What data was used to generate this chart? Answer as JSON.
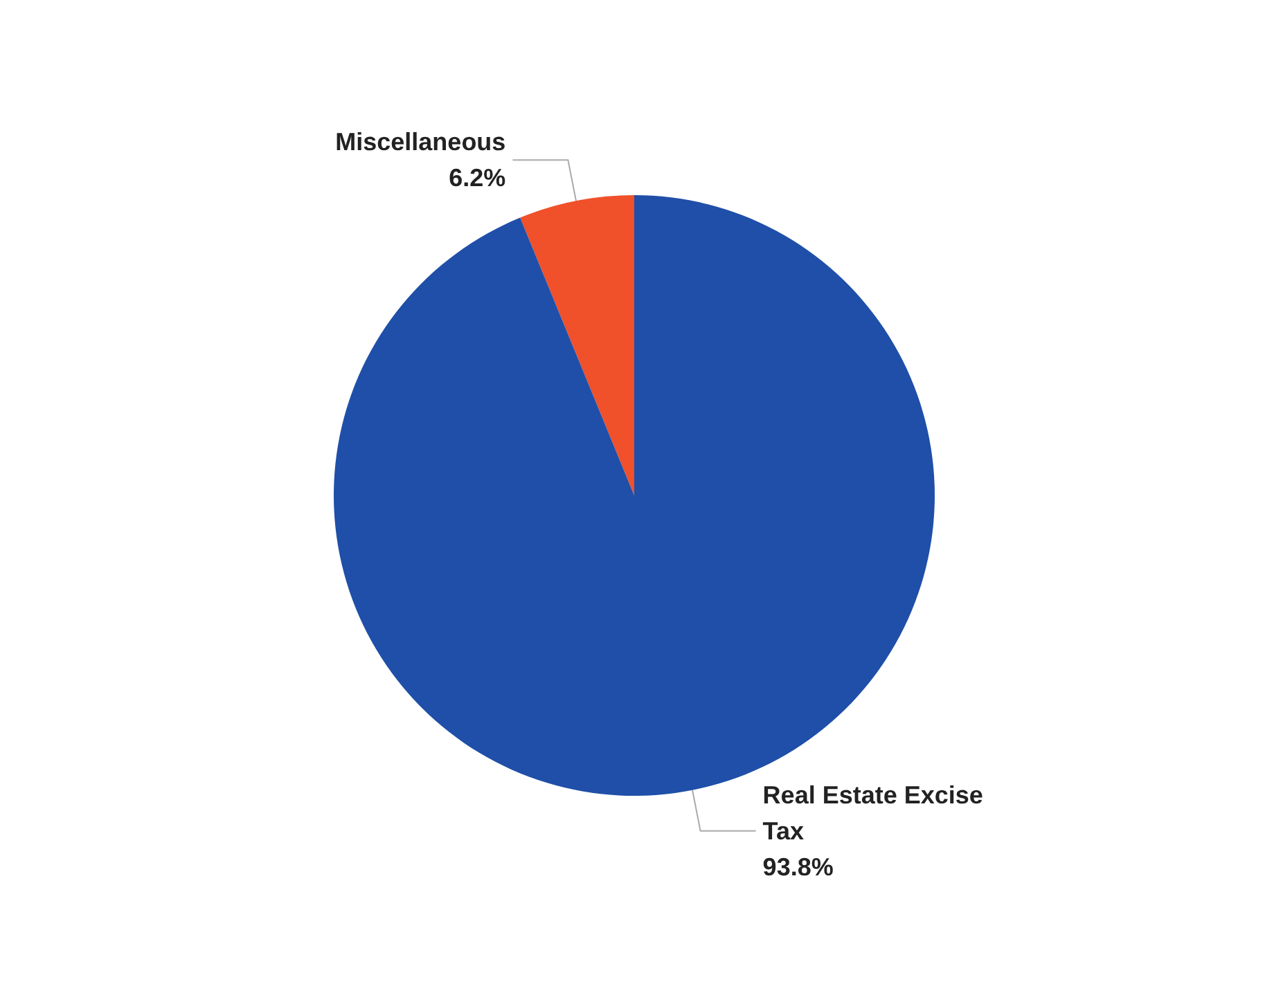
{
  "chart_data": {
    "type": "pie",
    "categories": [
      "Miscellaneous",
      "Real Estate Excise Tax"
    ],
    "values": [
      6.2,
      93.8
    ],
    "value_labels": [
      "6.2%",
      "93.8%"
    ],
    "colors": [
      "#f0502a",
      "#1f4fa8"
    ],
    "legend": false
  }
}
